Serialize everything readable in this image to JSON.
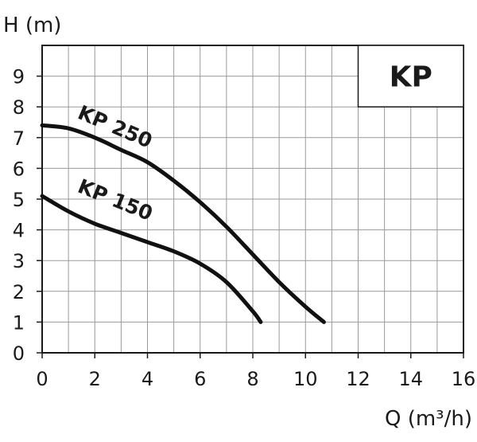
{
  "chart_data": {
    "type": "line",
    "title": "",
    "badge": "KP",
    "xlabel": "Q (m³/h)",
    "ylabel": "H (m)",
    "xlim": [
      0,
      16
    ],
    "ylim": [
      0,
      10
    ],
    "xticks": [
      0,
      2,
      4,
      6,
      8,
      10,
      12,
      14,
      16
    ],
    "yticks": [
      0,
      1,
      2,
      3,
      4,
      5,
      6,
      7,
      8,
      9
    ],
    "grid": true,
    "series": [
      {
        "name": "KP 250",
        "points": [
          [
            0,
            7.4
          ],
          [
            1,
            7.3
          ],
          [
            2,
            7.0
          ],
          [
            3,
            6.6
          ],
          [
            4,
            6.2
          ],
          [
            5,
            5.6
          ],
          [
            6,
            4.9
          ],
          [
            7,
            4.1
          ],
          [
            8,
            3.2
          ],
          [
            9,
            2.3
          ],
          [
            10,
            1.5
          ],
          [
            10.7,
            1.0
          ]
        ]
      },
      {
        "name": "KP 150",
        "points": [
          [
            0,
            5.1
          ],
          [
            1,
            4.6
          ],
          [
            2,
            4.2
          ],
          [
            3,
            3.9
          ],
          [
            4,
            3.6
          ],
          [
            5,
            3.3
          ],
          [
            6,
            2.9
          ],
          [
            7,
            2.3
          ],
          [
            8,
            1.35
          ],
          [
            8.3,
            1.0
          ]
        ]
      }
    ]
  }
}
